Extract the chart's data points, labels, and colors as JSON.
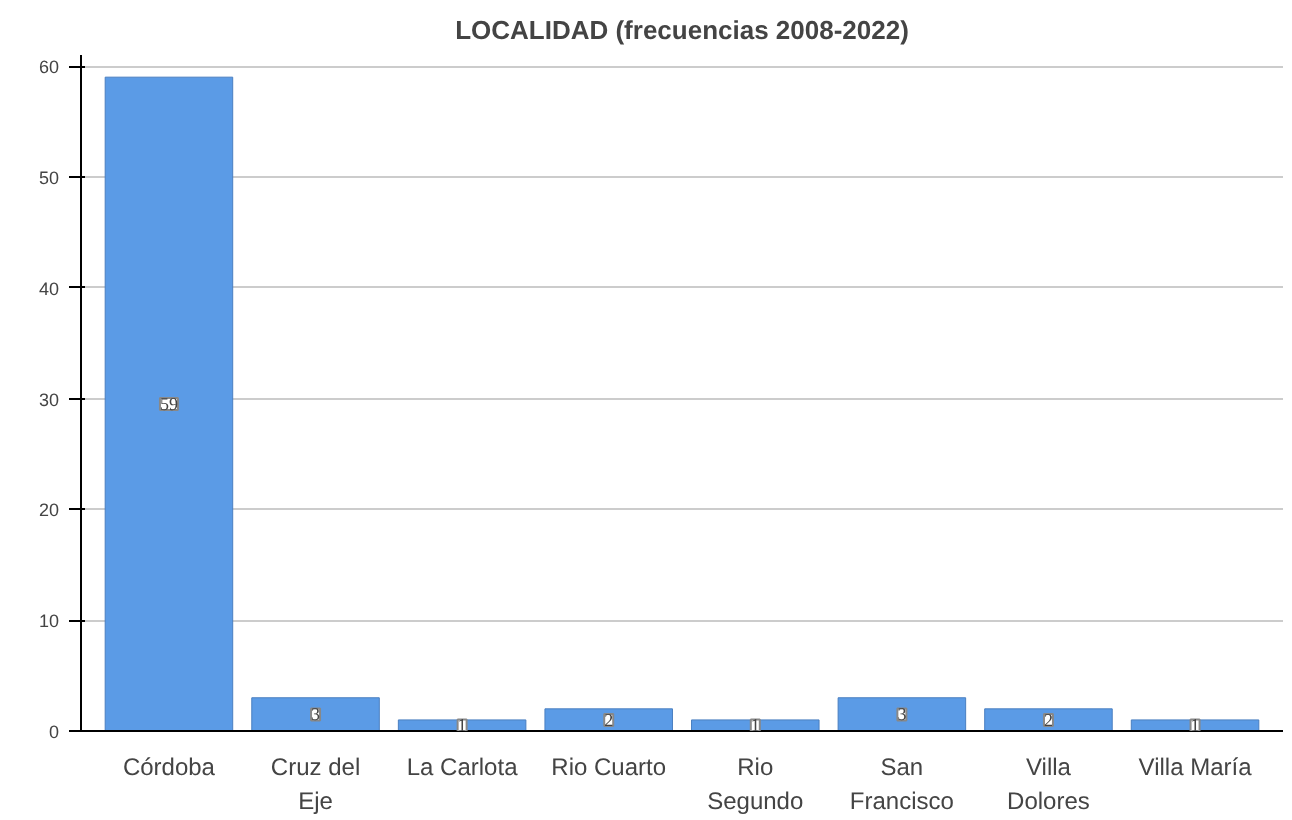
{
  "chart_data": {
    "type": "bar",
    "title": "LOCALIDAD (frecuencias 2008-2022)",
    "categories": [
      "Córdoba",
      "Cruz del\nEje",
      "La Carlota",
      "Rio Cuarto",
      "Rio\nSegundo",
      "San\nFrancisco",
      "Villa\nDolores",
      "Villa María"
    ],
    "values": [
      59,
      3,
      1,
      2,
      1,
      3,
      2,
      1
    ],
    "color": "#5b9be6",
    "ylim": [
      0,
      61
    ],
    "yticks": [
      0,
      10,
      20,
      30,
      40,
      50,
      60
    ],
    "grid": "y",
    "data_labels": true
  }
}
